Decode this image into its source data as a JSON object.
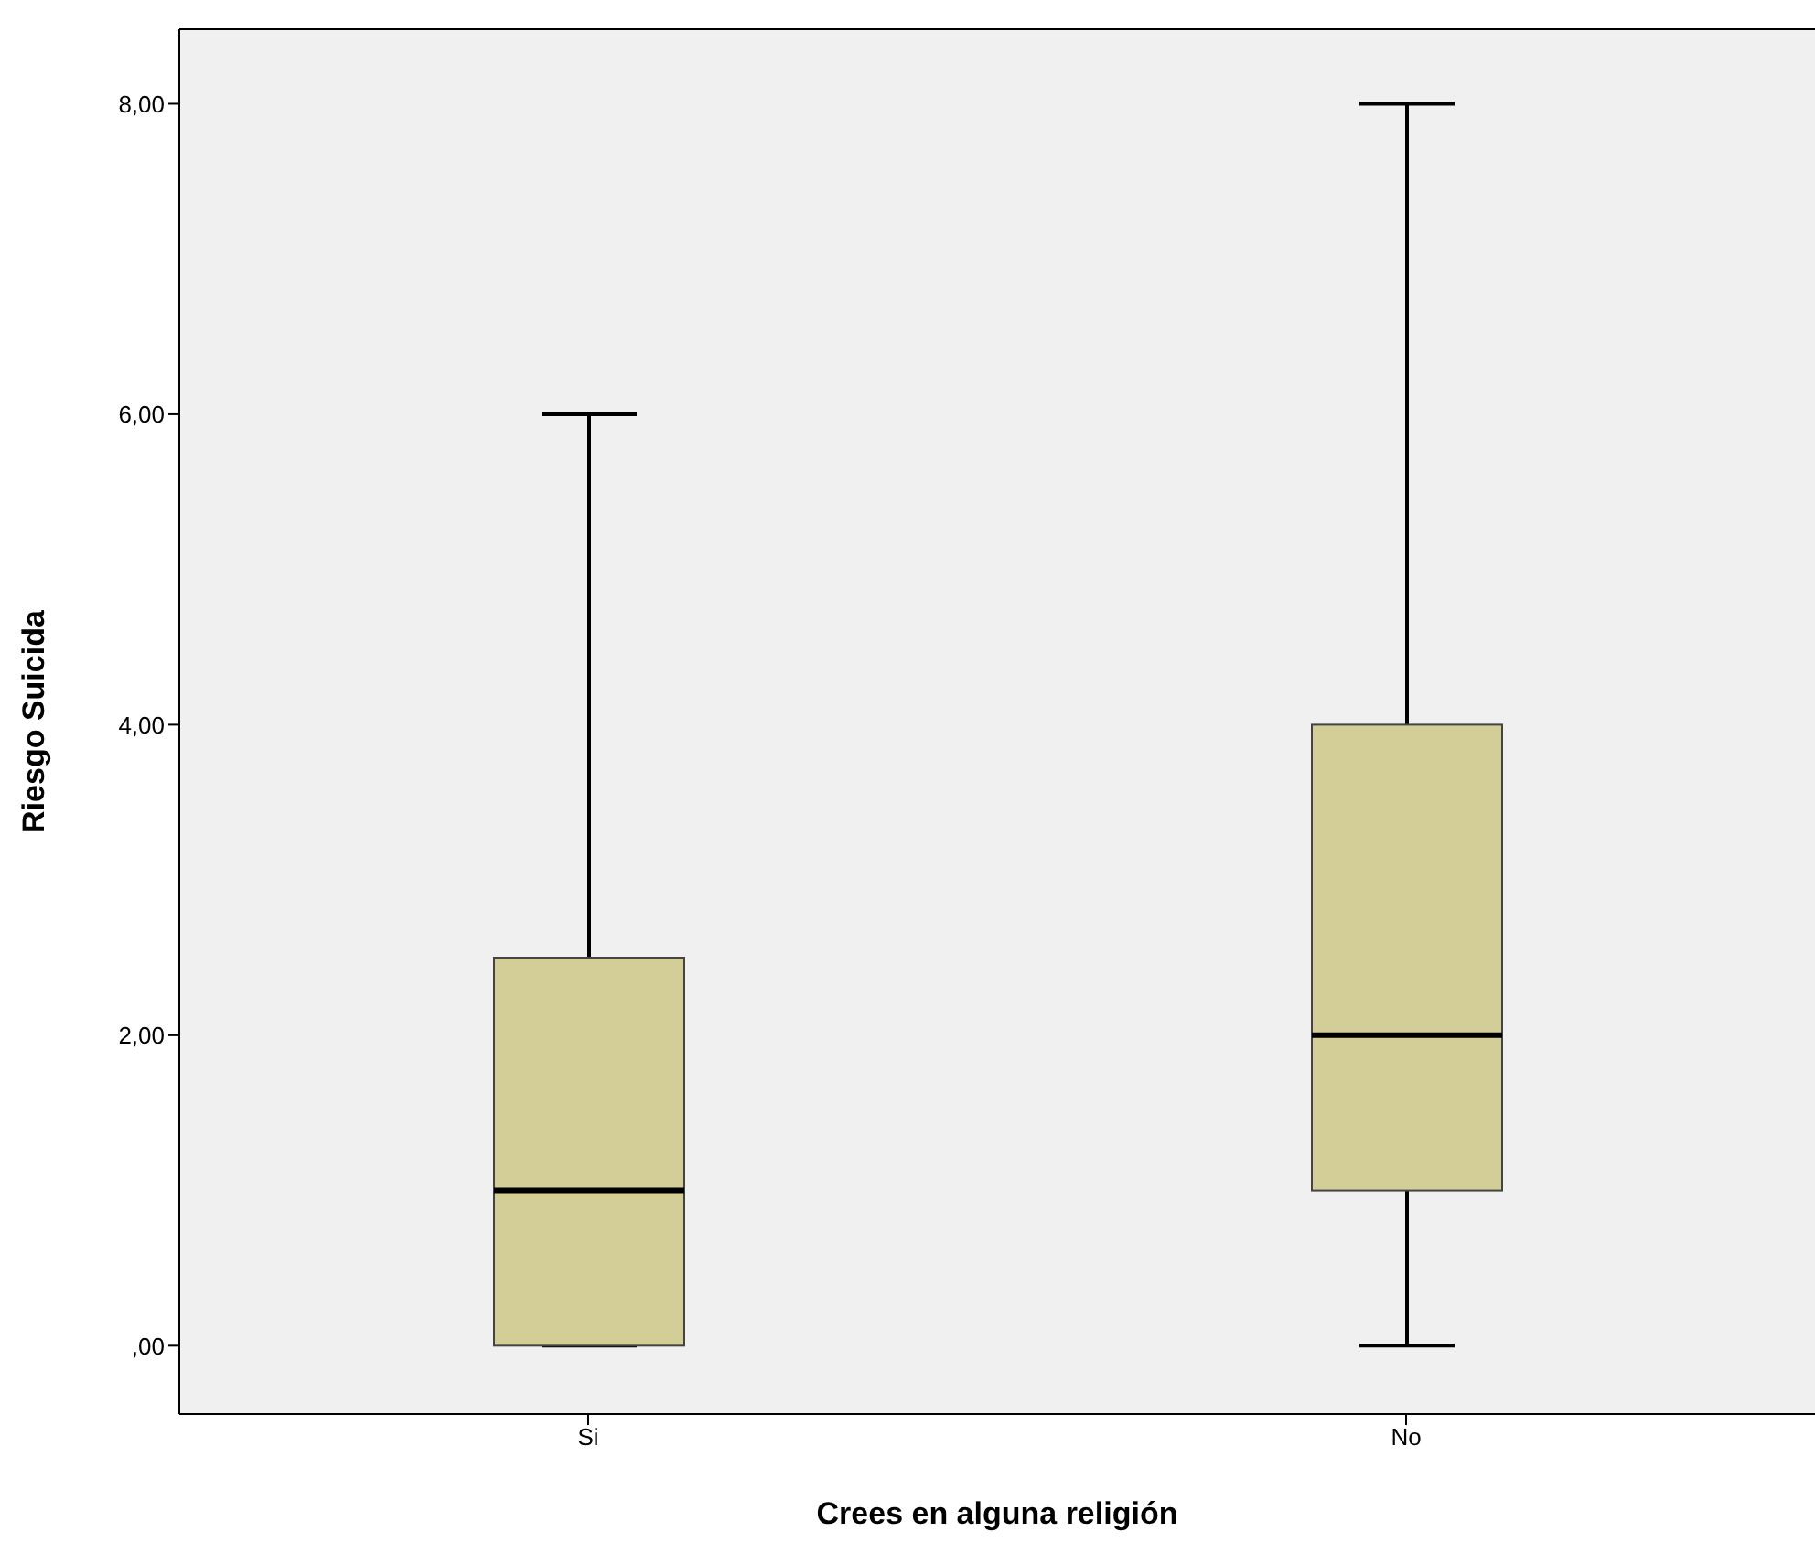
{
  "chart_data": {
    "type": "box",
    "xlabel": "Crees en alguna religión",
    "ylabel": "Riesgo Suicida",
    "categories": [
      "Si",
      "No"
    ],
    "color": "#d3ce97",
    "boxes": [
      {
        "low": 0,
        "q1": 0,
        "median": 1,
        "q3": 2.5,
        "high": 6
      },
      {
        "low": 0,
        "q1": 1,
        "median": 2,
        "q3": 4,
        "high": 8
      }
    ],
    "ylim": [
      -0.44,
      8.48
    ],
    "yticks": [
      {
        "value": 0,
        "label": ",00"
      },
      {
        "value": 2,
        "label": "2,00"
      },
      {
        "value": 4,
        "label": "4,00"
      },
      {
        "value": 6,
        "label": "6,00"
      },
      {
        "value": 8,
        "label": "8,00"
      }
    ],
    "grid": false,
    "legend": false
  }
}
